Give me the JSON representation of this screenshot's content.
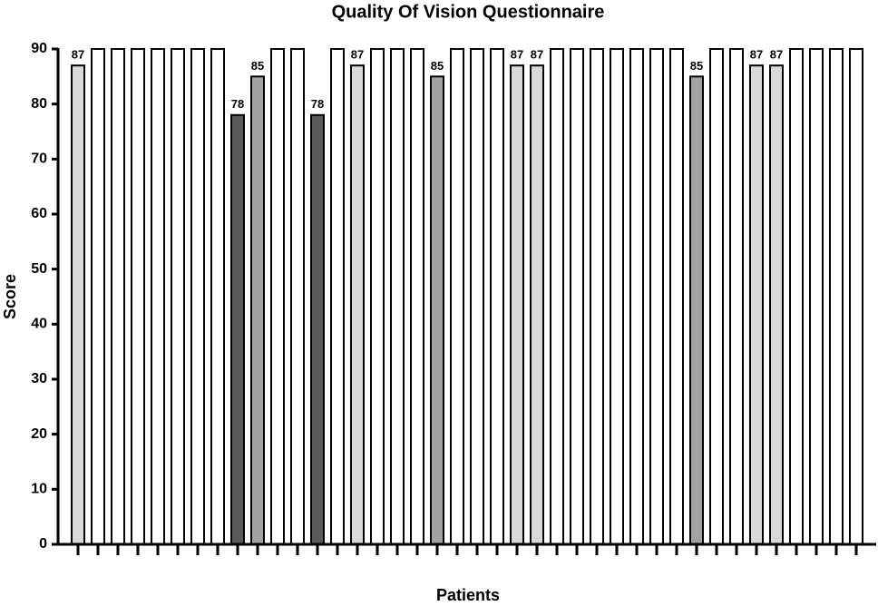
{
  "chart_data": {
    "type": "bar",
    "title": "Quality Of Vision Questionnaire",
    "x_label": "Patients",
    "y_label": "Score",
    "categories": [
      null,
      null,
      null,
      null,
      null,
      null,
      null,
      null,
      null,
      null,
      null,
      null,
      null,
      null,
      null,
      null,
      null,
      null,
      null,
      null,
      null,
      null,
      null,
      null,
      null,
      null,
      null,
      null,
      null,
      null,
      null,
      null,
      null,
      null,
      null,
      null,
      null,
      null,
      null,
      null
    ],
    "values": [
      87,
      90,
      90,
      90,
      90,
      90,
      90,
      90,
      78,
      85,
      90,
      90,
      78,
      90,
      87,
      90,
      90,
      90,
      85,
      90,
      90,
      90,
      87,
      87,
      90,
      90,
      90,
      90,
      90,
      90,
      90,
      85,
      90,
      90,
      87,
      87,
      90,
      90,
      90,
      90
    ],
    "value_labels": [
      "87",
      null,
      null,
      null,
      null,
      null,
      null,
      null,
      "78",
      "85",
      null,
      null,
      "78",
      null,
      "87",
      null,
      null,
      null,
      "85",
      null,
      null,
      null,
      "87",
      "87",
      null,
      null,
      null,
      null,
      null,
      null,
      null,
      "85",
      null,
      null,
      "87",
      "87",
      null,
      null,
      null,
      null
    ],
    "colors": [
      "#d9d9d9",
      "#ffffff",
      "#ffffff",
      "#ffffff",
      "#ffffff",
      "#ffffff",
      "#ffffff",
      "#ffffff",
      "#5a5a5a",
      "#a3a3a3",
      "#ffffff",
      "#ffffff",
      "#5a5a5a",
      "#ffffff",
      "#d9d9d9",
      "#ffffff",
      "#ffffff",
      "#ffffff",
      "#a3a3a3",
      "#ffffff",
      "#ffffff",
      "#ffffff",
      "#d9d9d9",
      "#d9d9d9",
      "#ffffff",
      "#ffffff",
      "#ffffff",
      "#ffffff",
      "#ffffff",
      "#ffffff",
      "#ffffff",
      "#a3a3a3",
      "#ffffff",
      "#ffffff",
      "#d9d9d9",
      "#d9d9d9",
      "#ffffff",
      "#ffffff",
      "#ffffff",
      "#ffffff"
    ],
    "ylim": [
      0,
      90
    ],
    "yticks": [
      0,
      10,
      20,
      30,
      40,
      50,
      60,
      70,
      80,
      90
    ],
    "grid": false
  }
}
